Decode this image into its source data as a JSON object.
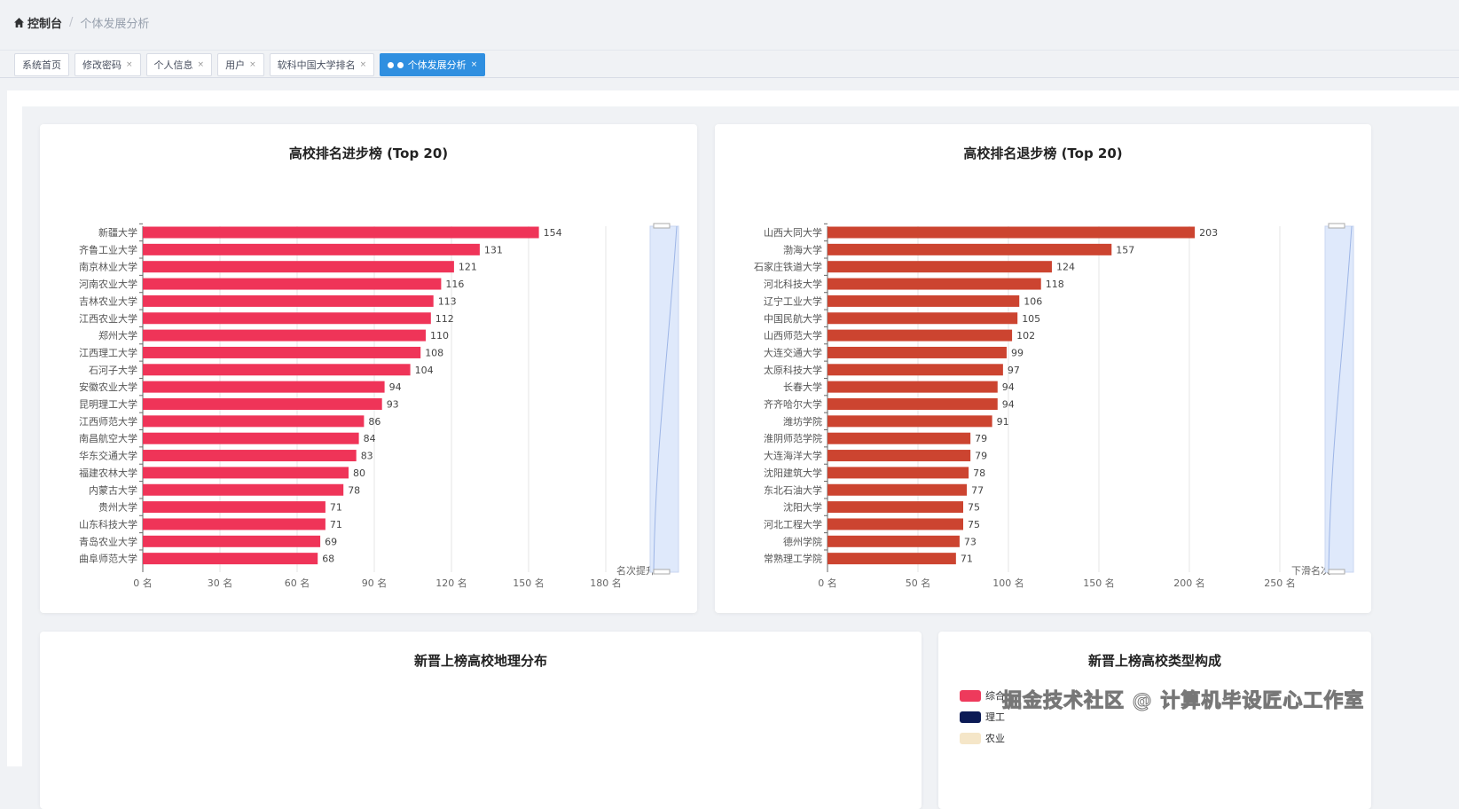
{
  "breadcrumb": {
    "home": "控制台",
    "current": "个体发展分析"
  },
  "tabs": [
    {
      "label": "系统首页",
      "closable": false
    },
    {
      "label": "修改密码",
      "closable": true
    },
    {
      "label": "个人信息",
      "closable": true
    },
    {
      "label": "用户",
      "closable": true
    },
    {
      "label": "软科中国大学排名",
      "closable": true
    },
    {
      "label": "个体发展分析",
      "closable": true,
      "active": true
    }
  ],
  "close_glyph": "×",
  "chart_data": [
    {
      "type": "bar",
      "orientation": "horizontal",
      "title": "高校排名进步榜 (Top 20)",
      "xlabel": "名次提升",
      "xlim": [
        0,
        180
      ],
      "xticks": [
        "0 名",
        "30 名",
        "60 名",
        "90 名",
        "120 名",
        "150 名",
        "180 名"
      ],
      "xtick_values": [
        0,
        30,
        60,
        90,
        120,
        150,
        180
      ],
      "color": "#ef3458",
      "grid": true,
      "categories": [
        "新疆大学",
        "齐鲁工业大学",
        "南京林业大学",
        "河南农业大学",
        "吉林农业大学",
        "江西农业大学",
        "郑州大学",
        "江西理工大学",
        "石河子大学",
        "安徽农业大学",
        "昆明理工大学",
        "江西师范大学",
        "南昌航空大学",
        "华东交通大学",
        "福建农林大学",
        "内蒙古大学",
        "贵州大学",
        "山东科技大学",
        "青岛农业大学",
        "曲阜师范大学"
      ],
      "values": [
        154,
        131,
        121,
        116,
        113,
        112,
        110,
        108,
        104,
        94,
        93,
        86,
        84,
        83,
        80,
        78,
        71,
        71,
        69,
        68
      ]
    },
    {
      "type": "bar",
      "orientation": "horizontal",
      "title": "高校排名退步榜 (Top 20)",
      "xlabel": "下滑名次",
      "xlim": [
        0,
        250
      ],
      "xticks": [
        "0 名",
        "50 名",
        "100 名",
        "150 名",
        "200 名",
        "250 名"
      ],
      "xtick_values": [
        0,
        50,
        100,
        150,
        200,
        250
      ],
      "color": "#cc4430",
      "grid": true,
      "categories": [
        "山西大同大学",
        "渤海大学",
        "石家庄铁道大学",
        "河北科技大学",
        "辽宁工业大学",
        "中国民航大学",
        "山西师范大学",
        "大连交通大学",
        "太原科技大学",
        "长春大学",
        "齐齐哈尔大学",
        "潍坊学院",
        "淮阴师范学院",
        "大连海洋大学",
        "沈阳建筑大学",
        "东北石油大学",
        "沈阳大学",
        "河北工程大学",
        "德州学院",
        "常熟理工学院"
      ],
      "values": [
        203,
        157,
        124,
        118,
        106,
        105,
        102,
        99,
        97,
        94,
        94,
        91,
        79,
        79,
        78,
        77,
        75,
        75,
        73,
        71
      ]
    }
  ],
  "geo_card": {
    "title": "新晋上榜高校地理分布"
  },
  "type_card": {
    "title": "新晋上榜高校类型构成",
    "legend": [
      {
        "label": "综合",
        "color": "#ee3a5c"
      },
      {
        "label": "理工",
        "color": "#0b1a55"
      },
      {
        "label": "农业",
        "color": "#f5e6c8"
      }
    ]
  },
  "watermark": "掘金技术社区 @ 计算机毕设匠心工作室"
}
